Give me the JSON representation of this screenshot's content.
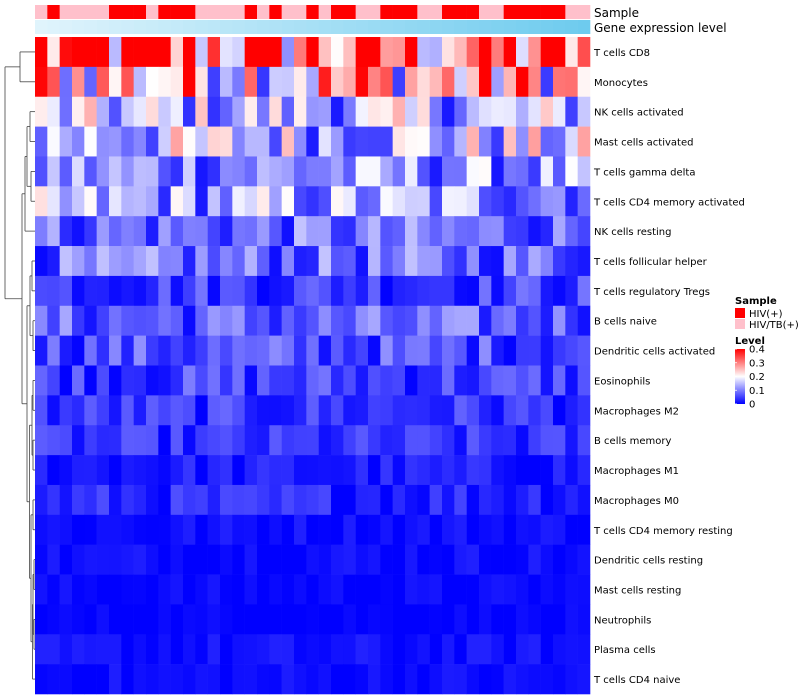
{
  "chart_data": {
    "type": "heatmap",
    "rows": [
      "T cells CD8",
      "Monocytes",
      "NK cells activated",
      "Mast cells activated",
      "T cells gamma delta",
      "T cells CD4 memory activated",
      "NK cells resting",
      "T cells follicular helper",
      "T cells regulatory  Tregs",
      "B cells naive",
      "Dendritic cells activated",
      "Eosinophils",
      "Macrophages M2",
      "B cells memory",
      "Macrophages M1",
      "Macrophages M0",
      "T cells CD4 memory resting",
      "Dendritic cells resting",
      "Mast cells resting",
      "Neutrophils",
      "Plasma cells",
      "T cells CD4 naive"
    ],
    "row_means": [
      0.32,
      0.25,
      0.14,
      0.15,
      0.11,
      0.12,
      0.08,
      0.08,
      0.05,
      0.07,
      0.06,
      0.05,
      0.04,
      0.035,
      0.02,
      0.03,
      0.01,
      0.01,
      0.005,
      0.002,
      0.01,
      0.008
    ],
    "n_samples": 45,
    "sample_groups": [
      "HIV/TB(+)",
      "HIV(+)",
      "HIV/TB(+)",
      "HIV/TB(+)",
      "HIV/TB(+)",
      "HIV/TB(+)",
      "HIV(+)",
      "HIV(+)",
      "HIV(+)",
      "HIV/TB(+)",
      "HIV(+)",
      "HIV(+)",
      "HIV(+)",
      "HIV/TB(+)",
      "HIV/TB(+)",
      "HIV/TB(+)",
      "HIV/TB(+)",
      "HIV(+)",
      "HIV/TB(+)",
      "HIV(+)",
      "HIV/TB(+)",
      "HIV/TB(+)",
      "HIV(+)",
      "HIV/TB(+)",
      "HIV(+)",
      "HIV(+)",
      "HIV/TB(+)",
      "HIV/TB(+)",
      "HIV(+)",
      "HIV(+)",
      "HIV(+)",
      "HIV/TB(+)",
      "HIV/TB(+)",
      "HIV(+)",
      "HIV(+)",
      "HIV(+)",
      "HIV/TB(+)",
      "HIV/TB(+)",
      "HIV(+)",
      "HIV(+)",
      "HIV(+)",
      "HIV(+)",
      "HIV(+)",
      "HIV/TB(+)",
      "HIV/TB(+)"
    ],
    "color_scale": {
      "min": 0,
      "max": 0.4,
      "low": "#0000ff",
      "mid": "#ffffff",
      "high": "#ff0000"
    },
    "annotation_rows": [
      "Sample",
      "Gene expression level"
    ],
    "legend": {
      "sample_title": "Sample",
      "sample_entries": [
        {
          "label": "HIV(+)",
          "color": "#ff0000"
        },
        {
          "label": "HIV/TB(+)",
          "color": "#ffc0cb"
        }
      ],
      "level_title": "Level",
      "level_ticks": [
        "0.4",
        "0.3",
        "0.2",
        "0.1",
        "0"
      ],
      "level_tick_values": [
        0.4,
        0.3,
        0.2,
        0.1,
        0
      ]
    },
    "gene_bar_colors": {
      "start": "#e0f4fc",
      "end": "#6ecbee"
    }
  }
}
